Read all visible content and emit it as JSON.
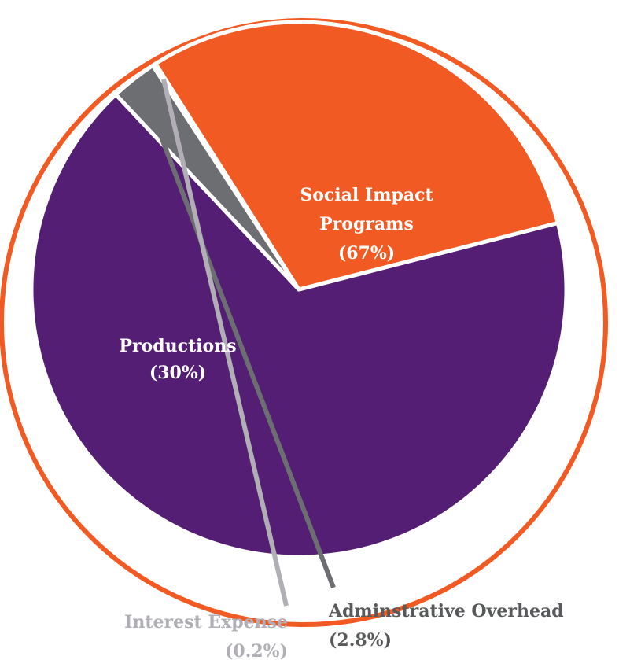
{
  "chart_data": {
    "type": "pie",
    "series": [
      {
        "name": "Social Impact Programs",
        "label_lines": [
          "Social Impact",
          "Programs"
        ],
        "percent_label": "(67%)",
        "value": 67.0,
        "color": "#541e74"
      },
      {
        "name": "Adminstrative Overhead",
        "label_lines": [
          "Adminstrative Overhead"
        ],
        "percent_label": "(2.8%)",
        "value": 2.8,
        "color": "#6d6e71"
      },
      {
        "name": "Interest Expense",
        "label_lines": [
          "Interest Expense"
        ],
        "percent_label": "(0.2%)",
        "value": 0.2,
        "color": "#b1afb5"
      },
      {
        "name": "Productions",
        "label_lines": [
          "Productions"
        ],
        "percent_label": "(30%)",
        "value": 30.0,
        "color": "#f15a22"
      }
    ],
    "ring_color": "#f15a22",
    "inside_label_color": "#ffffff",
    "outside_label_colors": {
      "Adminstrative Overhead": "#58595b",
      "Interest Expense": "#b1afb5"
    }
  }
}
